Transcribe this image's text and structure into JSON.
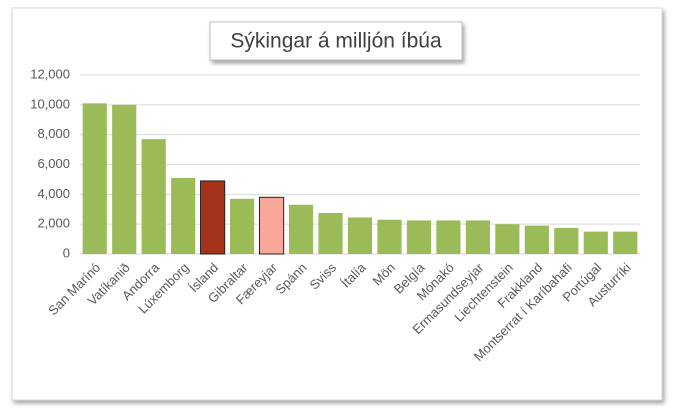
{
  "chart_data": {
    "type": "bar",
    "title": "Sýkingar á milljón íbúa",
    "categories": [
      "San Marínó",
      "Vatíkanið",
      "Andorra",
      "Lúxemborg",
      "Ísland",
      "Gibraltar",
      "Færeyjar",
      "Spánn",
      "Sviss",
      "Ítalía",
      "Mön",
      "Belgía",
      "Mónakó",
      "Ermasundseyjar",
      "Liechtenstein",
      "Frakkland",
      "Montserrat í Karíbahafi",
      "Portúgal",
      "Austurríki"
    ],
    "values": [
      10100,
      10000,
      7700,
      5100,
      4900,
      3700,
      3800,
      3300,
      2750,
      2450,
      2300,
      2250,
      2250,
      2250,
      2000,
      1900,
      1750,
      1500,
      1500
    ],
    "color": "#9bbb59",
    "colors": [
      "#9bbb59",
      "#9bbb59",
      "#9bbb59",
      "#9bbb59",
      "#a5321a",
      "#9bbb59",
      "#f7a89b",
      "#9bbb59",
      "#9bbb59",
      "#9bbb59",
      "#9bbb59",
      "#9bbb59",
      "#9bbb59",
      "#9bbb59",
      "#9bbb59",
      "#9bbb59",
      "#9bbb59",
      "#9bbb59",
      "#9bbb59"
    ],
    "ylim": [
      0,
      12000
    ],
    "yticks": [
      0,
      {
        "value": 2000,
        "label": "2,000"
      },
      {
        "value": 4000,
        "label": "4,000"
      },
      {
        "value": 6000,
        "label": "6,000"
      },
      {
        "value": 8000,
        "label": "8,000"
      },
      {
        "value": 10000,
        "label": "10,000"
      },
      {
        "value": 12000,
        "label": "12,000"
      }
    ],
    "grid": true
  }
}
